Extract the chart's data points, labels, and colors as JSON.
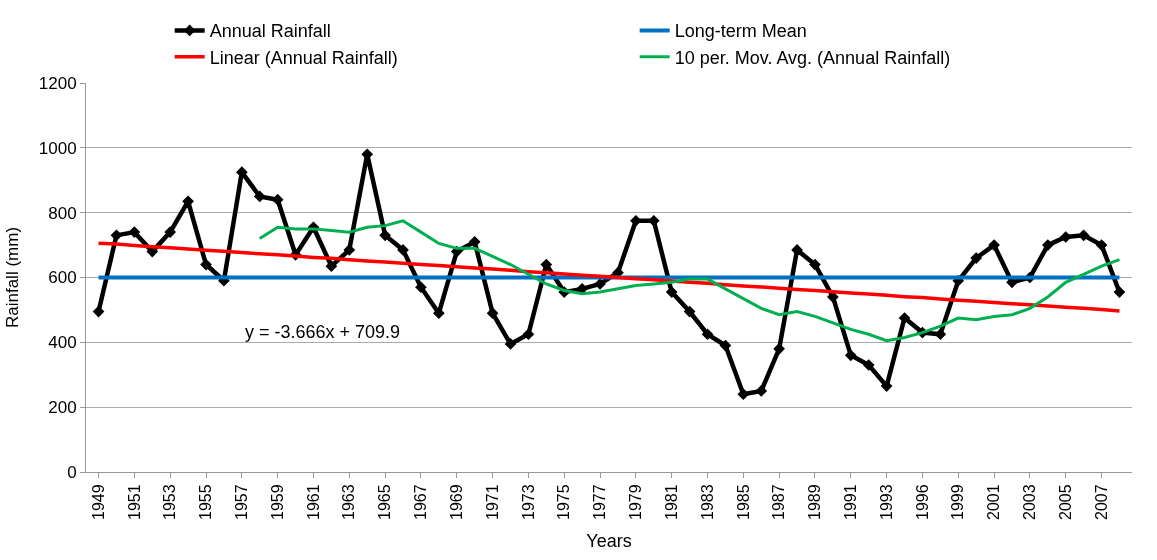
{
  "chart_data": {
    "type": "line",
    "xlabel": "Years",
    "ylabel": "Rainfall (mm)",
    "categories": [
      "1949",
      null,
      "1951",
      null,
      "1953",
      null,
      "1955",
      null,
      "1957",
      null,
      "1959",
      null,
      "1961",
      null,
      "1963",
      null,
      "1965",
      null,
      "1967",
      null,
      "1969",
      null,
      "1971",
      null,
      "1973",
      null,
      "1975",
      null,
      "1977",
      null,
      "1979",
      null,
      "1981",
      null,
      "1983",
      null,
      "1985",
      null,
      "1987",
      null,
      "1989",
      null,
      "1991",
      null,
      "1993",
      null,
      "1996",
      null,
      "1999",
      null,
      "2001",
      null,
      "2003",
      null,
      "2005",
      null,
      "2007",
      null
    ],
    "series": [
      {
        "name": "Annual Rainfall",
        "color": "#000000",
        "marker": "diamond",
        "values": [
          495,
          730,
          740,
          680,
          740,
          835,
          640,
          590,
          925,
          850,
          840,
          670,
          755,
          635,
          685,
          980,
          730,
          685,
          570,
          490,
          680,
          710,
          490,
          395,
          425,
          640,
          555,
          565,
          580,
          615,
          775,
          775,
          555,
          495,
          425,
          390,
          240,
          250,
          380,
          685,
          640,
          540,
          360,
          330,
          265,
          475,
          430,
          425,
          590,
          660,
          700,
          585,
          600,
          700,
          725,
          730,
          700,
          555
        ]
      },
      {
        "name": "Long-term Mean",
        "color": "#0070c0",
        "values": [
          600,
          600,
          600,
          600,
          600,
          600,
          600,
          600,
          600,
          600,
          600,
          600,
          600,
          600,
          600,
          600,
          600,
          600,
          600,
          600,
          600,
          600,
          600,
          600,
          600,
          600,
          600,
          600,
          600,
          600,
          600,
          600,
          600,
          600,
          600,
          600,
          600,
          600,
          600,
          600,
          600,
          600,
          600,
          600,
          600,
          600,
          600,
          600,
          600,
          600,
          600,
          600,
          600,
          600,
          600,
          600,
          600,
          600
        ]
      },
      {
        "name": "Linear (Annual Rainfall)",
        "color": "#ff0000",
        "values": [
          706,
          703,
          699,
          695,
          692,
          688,
          684,
          681,
          677,
          673,
          670,
          666,
          662,
          659,
          655,
          651,
          648,
          644,
          640,
          637,
          633,
          629,
          626,
          622,
          618,
          615,
          611,
          607,
          604,
          600,
          596,
          593,
          589,
          585,
          582,
          578,
          574,
          571,
          567,
          563,
          560,
          556,
          552,
          549,
          545,
          541,
          538,
          534,
          530,
          527,
          523,
          519,
          516,
          512,
          508,
          505,
          501,
          497
        ]
      },
      {
        "name": "10 per. Mov. Avg. (Annual Rainfall)",
        "color": "#00b050",
        "values": [
          null,
          null,
          null,
          null,
          null,
          null,
          null,
          null,
          null,
          720,
          755,
          750,
          750,
          745,
          740,
          755,
          760,
          775,
          740,
          705,
          690,
          690,
          665,
          640,
          610,
          580,
          560,
          550,
          555,
          565,
          575,
          580,
          585,
          595,
          595,
          565,
          535,
          505,
          485,
          495,
          480,
          460,
          440,
          425,
          405,
          415,
          430,
          450,
          475,
          470,
          480,
          485,
          505,
          540,
          585,
          610,
          635,
          655
        ]
      }
    ],
    "ylim": [
      0,
      1200
    ],
    "yticks": [
      0,
      200,
      400,
      600,
      800,
      1000,
      1200
    ],
    "grid": "y",
    "legend": "top",
    "annotations": [
      "y = -3.666x + 709.9"
    ]
  }
}
